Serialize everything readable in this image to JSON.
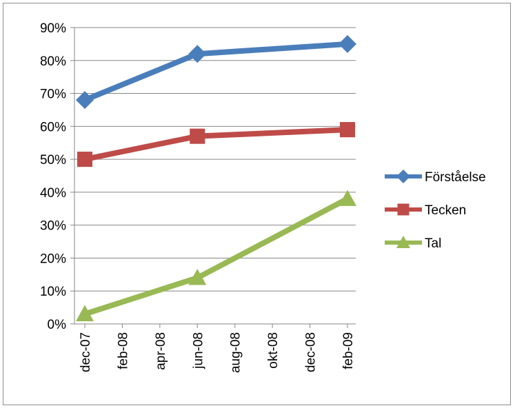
{
  "chart_data": {
    "type": "line",
    "title": "",
    "xlabel": "",
    "ylabel": "",
    "x_dates": [
      "2007-12",
      "2008-06",
      "2009-02"
    ],
    "x_ticks": [
      "dec-07",
      "feb-08",
      "apr-08",
      "jun-08",
      "aug-08",
      "okt-08",
      "dec-08",
      "feb-09"
    ],
    "y_ticks": [
      "0%",
      "10%",
      "20%",
      "30%",
      "40%",
      "50%",
      "60%",
      "70%",
      "80%",
      "90%"
    ],
    "ylim": [
      0,
      90
    ],
    "y_unit": "%",
    "grid": "horizontal",
    "legend_position": "right",
    "series": [
      {
        "name": "Förståelse",
        "values": [
          68,
          82,
          85
        ],
        "color": "#4a7ebb",
        "marker": "diamond"
      },
      {
        "name": "Tecken",
        "values": [
          50,
          57,
          59
        ],
        "color": "#be4b48",
        "marker": "square"
      },
      {
        "name": "Tal",
        "values": [
          3,
          14,
          38
        ],
        "color": "#98b954",
        "marker": "triangle"
      }
    ]
  }
}
